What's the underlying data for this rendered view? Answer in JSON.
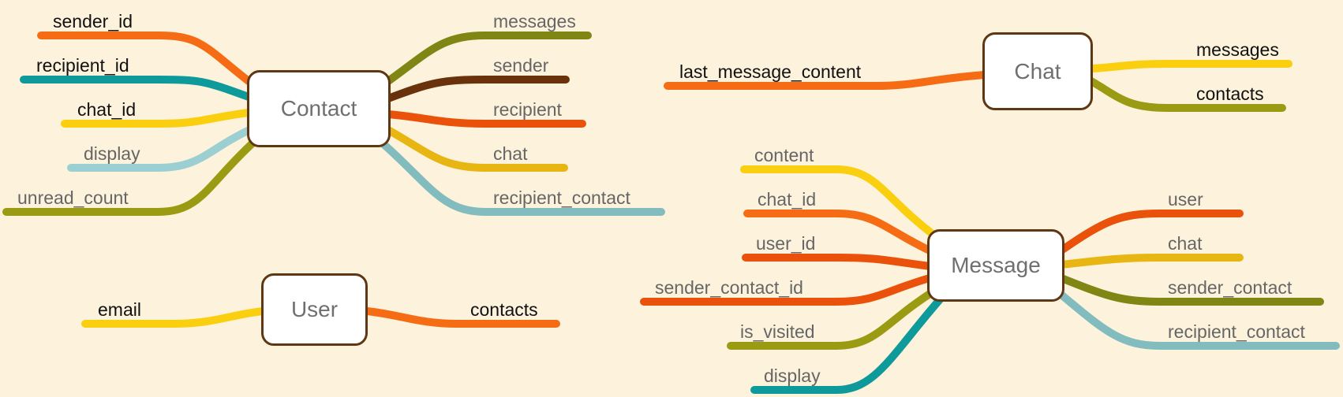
{
  "diagram": {
    "entities": {
      "contact": "Contact",
      "user": "User",
      "chat": "Chat",
      "message": "Message"
    },
    "contact_fields": {
      "left": [
        "sender_id",
        "recipient_id",
        "chat_id",
        "display",
        "unread_count"
      ],
      "right": [
        "messages",
        "sender",
        "recipient",
        "chat",
        "recipient_contact"
      ]
    },
    "user_fields": {
      "left": [
        "email"
      ],
      "right": [
        "contacts"
      ]
    },
    "chat_fields": {
      "left": [
        "last_message_content"
      ],
      "right": [
        "messages",
        "contacts"
      ]
    },
    "message_fields": {
      "left": [
        "content",
        "chat_id",
        "user_id",
        "sender_contact_id",
        "is_visited",
        "display"
      ],
      "right": [
        "user",
        "chat",
        "sender_contact",
        "recipient_contact"
      ]
    },
    "colors": {
      "background": "#fdf3dc",
      "node_border": "#5e3714",
      "orange": "#f56c14",
      "teal": "#0e9a9a",
      "yellow": "#f9cf0f",
      "light_teal": "#9bcfd2",
      "olive": "#9a9b12",
      "olive_dark": "#7f8614",
      "brown": "#6a320a",
      "red_orange": "#ea520c",
      "gold": "#e8b613",
      "grey_teal": "#82bcbe"
    }
  }
}
